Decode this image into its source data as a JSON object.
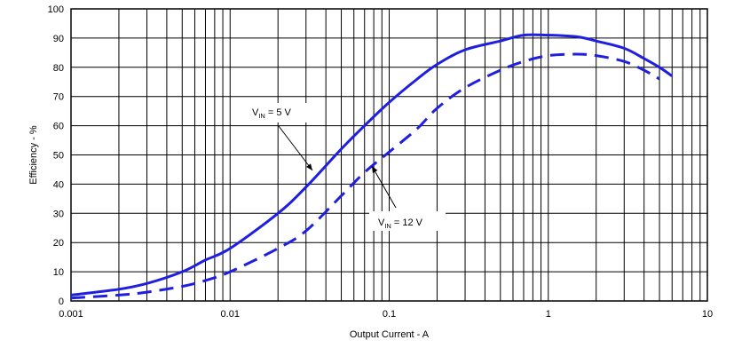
{
  "chart_data": {
    "type": "line",
    "xscale": "log",
    "xlim": [
      0.001,
      10
    ],
    "ylim": [
      0,
      100
    ],
    "xlabel": "Output Current - A",
    "ylabel": "Efficiency - %",
    "grid": true,
    "x_ticks": [
      "0.001",
      "0.01",
      "0.1",
      "1",
      "10"
    ],
    "y_ticks": [
      "0",
      "10",
      "20",
      "30",
      "40",
      "50",
      "60",
      "70",
      "80",
      "90",
      "100"
    ],
    "series": [
      {
        "name": "VIN = 5 V",
        "color": "#1f1fe0",
        "style": "solid",
        "x": [
          0.001,
          0.002,
          0.003,
          0.005,
          0.007,
          0.01,
          0.02,
          0.03,
          0.05,
          0.07,
          0.1,
          0.15,
          0.2,
          0.3,
          0.5,
          0.7,
          1,
          1.5,
          2,
          3,
          4,
          5,
          6
        ],
        "y": [
          2,
          4,
          6,
          10,
          14,
          18,
          30,
          39,
          52,
          60,
          68,
          76,
          81,
          86,
          89,
          91,
          91,
          90.5,
          89,
          86.5,
          83,
          80,
          77
        ]
      },
      {
        "name": "VIN = 12 V",
        "color": "#1f1fe0",
        "style": "dashed",
        "x": [
          0.001,
          0.002,
          0.003,
          0.005,
          0.007,
          0.01,
          0.02,
          0.03,
          0.05,
          0.07,
          0.1,
          0.15,
          0.2,
          0.3,
          0.5,
          0.7,
          1,
          1.5,
          2,
          3,
          4,
          5
        ],
        "y": [
          1,
          2,
          3,
          5,
          7,
          10,
          18,
          24,
          36,
          44,
          51,
          59,
          66,
          73,
          79,
          82,
          84,
          84.5,
          84,
          82,
          79,
          76
        ]
      }
    ],
    "annotations": [
      {
        "main": "V",
        "sub": "IN",
        "rest": " = 5 V"
      },
      {
        "main": "V",
        "sub": "IN",
        "rest": " = 12 V"
      }
    ]
  }
}
